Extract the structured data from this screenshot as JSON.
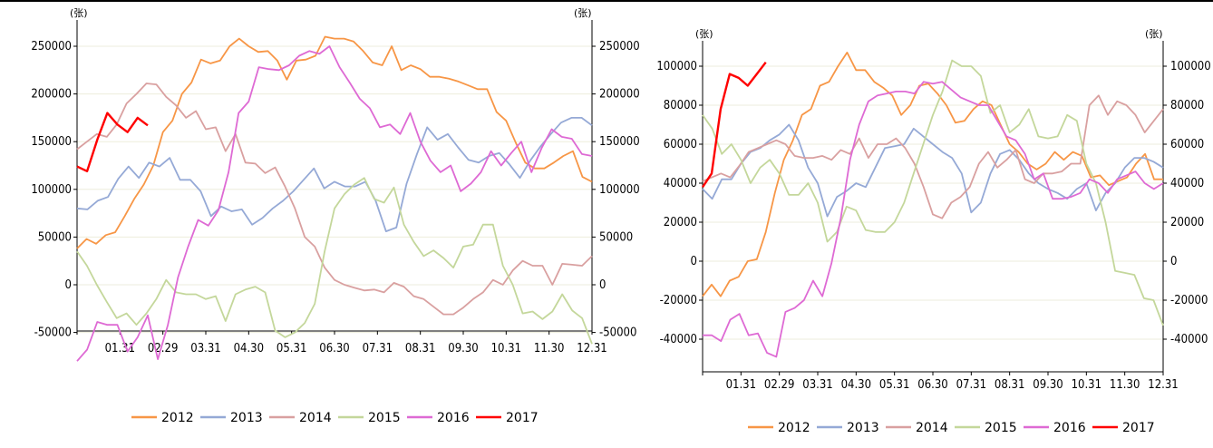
{
  "chart_data": [
    {
      "type": "line",
      "unit_left": "(张)",
      "unit_right": "(张)",
      "ylim": [
        -90000,
        270000
      ],
      "yticks": [
        250000,
        200000,
        150000,
        100000,
        50000,
        0,
        -50000
      ],
      "yticklabels": [
        "250000",
        "200000",
        "150000",
        "100000",
        "50000",
        "0",
        "-50000"
      ],
      "xticklabels": [
        "01.31",
        "02.29",
        "03.31",
        "04.30",
        "05.31",
        "06.30",
        "07.31",
        "08.31",
        "09.30",
        "10.31",
        "11.30",
        "12.31"
      ],
      "legend_position": "bottom",
      "series": [
        {
          "name": "2012",
          "color": "#f79646",
          "values": [
            38000,
            48000,
            43000,
            52000,
            55000,
            72000,
            90000,
            105000,
            125000,
            160000,
            172000,
            200000,
            212000,
            236000,
            232000,
            235000,
            250000,
            258000,
            250000,
            244000,
            245000,
            235000,
            215000,
            235000,
            236000,
            240000,
            260000,
            258000,
            258000,
            255000,
            245000,
            233000,
            230000,
            250000,
            225000,
            230000,
            226000,
            218000,
            218000,
            216000,
            213000,
            209000,
            205000,
            205000,
            181000,
            172000,
            149000,
            128000,
            122000,
            122000,
            128000,
            135000,
            140000,
            113000,
            108000
          ]
        },
        {
          "name": "2013",
          "color": "#95a9d6",
          "values": [
            80000,
            79000,
            88000,
            92000,
            111000,
            124000,
            112000,
            128000,
            124000,
            133000,
            110000,
            110000,
            98000,
            72000,
            82000,
            77000,
            79000,
            63000,
            70000,
            80000,
            88000,
            98000,
            110000,
            122000,
            101000,
            108000,
            103000,
            103000,
            108000,
            88000,
            56000,
            60000,
            106000,
            137000,
            165000,
            152000,
            158000,
            144000,
            131000,
            128000,
            135000,
            138000,
            126000,
            112000,
            130000,
            145000,
            158000,
            170000,
            175000,
            175000,
            167000
          ]
        },
        {
          "name": "2014",
          "color": "#d9a0a0",
          "values": [
            142000,
            150000,
            158000,
            155000,
            168000,
            190000,
            200000,
            211000,
            210000,
            197000,
            188000,
            175000,
            182000,
            163000,
            165000,
            140000,
            158000,
            128000,
            127000,
            117000,
            123000,
            103000,
            80000,
            50000,
            40000,
            18000,
            5000,
            0,
            -3000,
            -6000,
            -5000,
            -8000,
            2000,
            -2000,
            -12000,
            -15000,
            -23000,
            -31000,
            -31000,
            -24000,
            -15000,
            -8000,
            5000,
            0,
            15000,
            25000,
            20000,
            20000,
            0,
            22000,
            21000,
            20000,
            30000
          ]
        },
        {
          "name": "2015",
          "color": "#c4d79b",
          "values": [
            35000,
            20000,
            0,
            -18000,
            -35000,
            -30000,
            -42000,
            -30000,
            -15000,
            5000,
            -8000,
            -10000,
            -10000,
            -15000,
            -12000,
            -38000,
            -10000,
            -5000,
            -2000,
            -8000,
            -48000,
            -55000,
            -50000,
            -40000,
            -20000,
            35000,
            80000,
            95000,
            105000,
            112000,
            90000,
            86000,
            102000,
            63000,
            45000,
            30000,
            36000,
            28000,
            18000,
            40000,
            42000,
            63000,
            63000,
            20000,
            0,
            -30000,
            -28000,
            -36000,
            -28000,
            -10000,
            -27000,
            -35000,
            -62000
          ]
        },
        {
          "name": "2016",
          "color": "#de6ad4",
          "values": [
            -80000,
            -68000,
            -39000,
            -42000,
            -42000,
            -70000,
            -55000,
            -32000,
            -78000,
            -42000,
            8000,
            40000,
            68000,
            62000,
            78000,
            118000,
            180000,
            192000,
            228000,
            226000,
            225000,
            230000,
            240000,
            245000,
            242000,
            250000,
            228000,
            212000,
            195000,
            185000,
            165000,
            168000,
            158000,
            180000,
            150000,
            130000,
            118000,
            125000,
            98000,
            106000,
            118000,
            140000,
            125000,
            138000,
            150000,
            118000,
            143000,
            163000,
            155000,
            153000,
            137000,
            135000
          ]
        },
        {
          "name": "2017",
          "color": "#ff0000",
          "values": [
            124000,
            119000,
            152000,
            180000,
            168000,
            160000,
            175000,
            167000
          ]
        }
      ]
    },
    {
      "type": "line",
      "unit_left": "(张)",
      "unit_right": "(张)",
      "ylim": [
        -50000,
        110000
      ],
      "yticks": [
        100000,
        80000,
        60000,
        40000,
        20000,
        0,
        -20000,
        -40000
      ],
      "yticklabels": [
        "100000",
        "80000",
        "60000",
        "40000",
        "20000",
        "0",
        "-20000",
        "-40000"
      ],
      "xticklabels": [
        "01.31",
        "02.29",
        "03.31",
        "04.30",
        "05.31",
        "06.30",
        "07.31",
        "08.31",
        "09.30",
        "10.31",
        "11.30",
        "12.31"
      ],
      "legend_position": "bottom",
      "series": [
        {
          "name": "2012",
          "color": "#f79646",
          "values": [
            -18000,
            -12000,
            -18000,
            -10000,
            -8000,
            0,
            1000,
            15000,
            35000,
            52000,
            62000,
            75000,
            78000,
            90000,
            92000,
            100000,
            107000,
            98000,
            98000,
            92000,
            89000,
            85000,
            75000,
            80000,
            90000,
            91000,
            86000,
            80000,
            71000,
            72000,
            78000,
            82000,
            80000,
            70000,
            60000,
            56000,
            50000,
            47000,
            50000,
            56000,
            52000,
            56000,
            54000,
            43000,
            44000,
            39000,
            41000,
            43000,
            50000,
            55000,
            42000,
            42000
          ]
        },
        {
          "name": "2013",
          "color": "#95a9d6",
          "values": [
            37000,
            32000,
            42000,
            42000,
            50000,
            56000,
            58000,
            62000,
            65000,
            70000,
            62000,
            48000,
            40000,
            23000,
            33000,
            36000,
            40000,
            38000,
            48000,
            58000,
            59000,
            60000,
            68000,
            64000,
            60000,
            56000,
            53000,
            45000,
            25000,
            30000,
            45000,
            55000,
            57000,
            52000,
            45000,
            40000,
            37000,
            35000,
            32000,
            37000,
            40000,
            26000,
            35000,
            40000,
            48000,
            53000,
            53000,
            51000,
            48000
          ]
        },
        {
          "name": "2014",
          "color": "#d9a0a0",
          "values": [
            41000,
            43000,
            45000,
            43000,
            49000,
            56000,
            58000,
            60000,
            62000,
            60000,
            54000,
            53000,
            53000,
            54000,
            52000,
            57000,
            55000,
            63000,
            53000,
            60000,
            60000,
            63000,
            58000,
            50000,
            38000,
            24000,
            22000,
            30000,
            33000,
            38000,
            50000,
            56000,
            48000,
            52000,
            57000,
            42000,
            40000,
            45000,
            45000,
            46000,
            50000,
            50000,
            80000,
            85000,
            75000,
            82000,
            80000,
            75000,
            66000,
            72000,
            78000
          ]
        },
        {
          "name": "2015",
          "color": "#c4d79b",
          "values": [
            75000,
            68000,
            55000,
            60000,
            52000,
            40000,
            48000,
            52000,
            45000,
            34000,
            34000,
            40000,
            30000,
            10000,
            15000,
            28000,
            26000,
            16000,
            15000,
            15000,
            20000,
            30000,
            45000,
            60000,
            75000,
            87000,
            103000,
            100000,
            100000,
            95000,
            76000,
            80000,
            66000,
            70000,
            78000,
            64000,
            63000,
            64000,
            75000,
            72000,
            50000,
            40000,
            20000,
            -5000,
            -6000,
            -7000,
            -19000,
            -20000,
            -33000
          ]
        },
        {
          "name": "2016",
          "color": "#de6ad4",
          "values": [
            -38000,
            -38000,
            -41000,
            -30000,
            -27000,
            -38000,
            -37000,
            -47000,
            -49000,
            -26000,
            -24000,
            -20000,
            -10000,
            -18000,
            -1000,
            22000,
            52000,
            70000,
            82000,
            85000,
            86000,
            87000,
            87000,
            86000,
            92000,
            91000,
            92000,
            88000,
            84000,
            82000,
            80000,
            80000,
            72000,
            64000,
            62000,
            55000,
            42000,
            45000,
            32000,
            32000,
            33000,
            35000,
            42000,
            40000,
            35000,
            42000,
            44000,
            46000,
            40000,
            37000,
            40000
          ]
        },
        {
          "name": "2017",
          "color": "#ff0000",
          "values": [
            38000,
            45000,
            78000,
            96000,
            94000,
            90000,
            96000,
            102000
          ]
        }
      ]
    }
  ]
}
